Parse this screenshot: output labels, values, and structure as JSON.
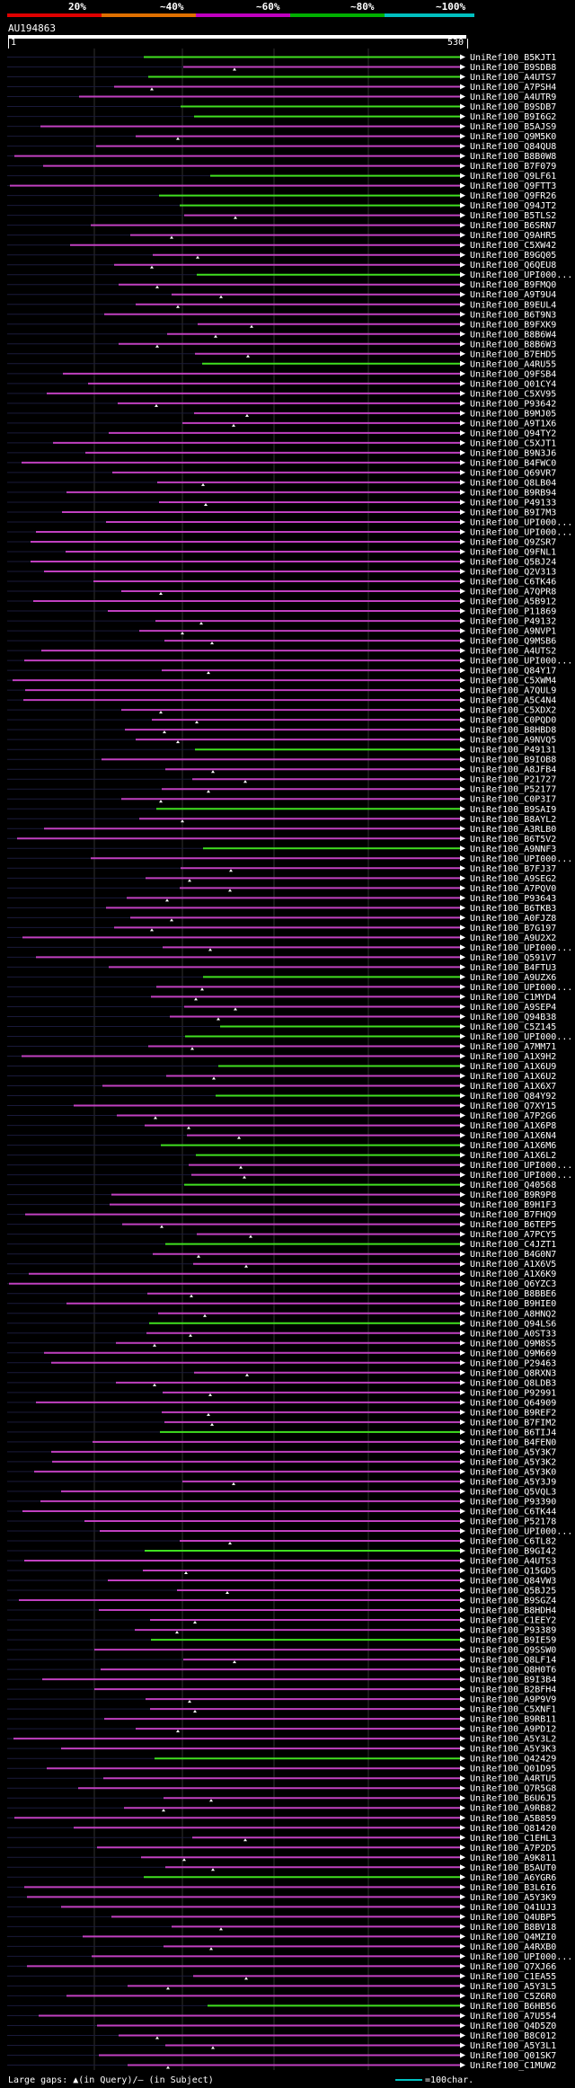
{
  "scale": {
    "labels": [
      "20%",
      "~40%",
      "~60%",
      "~80%",
      "~100%"
    ],
    "colors": [
      "#e00000",
      "#e07000",
      "#c000c0",
      "#00b000",
      "#00c0c0"
    ]
  },
  "query": {
    "id": "AU194863",
    "start": "1",
    "end": "530"
  },
  "hit_colors": {
    "high": "#40e020",
    "mid": "#c040c0"
  },
  "hits": [
    "UniRef100_B5KJT1",
    "UniRef100_B9SDB8",
    "UniRef100_A4UTS7",
    "UniRef100_A7PSH4",
    "UniRef100_A4UTR9",
    "UniRef100_B9SDB7",
    "UniRef100_B9I6G2",
    "UniRef100_B5AJS9",
    "UniRef100_Q9M5K0",
    "UniRef100_Q84QU8",
    "UniRef100_B8B0W8",
    "UniRef100_B7F079",
    "UniRef100_Q9LF61",
    "UniRef100_Q9FTT3",
    "UniRef100_Q9FR26",
    "UniRef100_Q94JT2",
    "UniRef100_B5TLS2",
    "UniRef100_B6SRN7",
    "UniRef100_Q9AHR5",
    "UniRef100_C5XW42",
    "UniRef100_B9GQ05",
    "UniRef100_Q6QEU8",
    "UniRef100_UPI000...",
    "UniRef100_B9FMQ0",
    "UniRef100_A9T9U4",
    "UniRef100_B9EUL4",
    "UniRef100_B6T9N3",
    "UniRef100_B9FXK9",
    "UniRef100_B8B6W4",
    "UniRef100_B8B6W3",
    "UniRef100_B7EHD5",
    "UniRef100_A4RU55",
    "UniRef100_Q9FSB4",
    "UniRef100_Q01CY4",
    "UniRef100_C5XV95",
    "UniRef100_P93642",
    "UniRef100_B9MJ05",
    "UniRef100_A9T1X6",
    "UniRef100_Q94TY2",
    "UniRef100_C5XJT1",
    "UniRef100_B9N3J6",
    "UniRef100_B4FWC0",
    "UniRef100_Q69VR7",
    "UniRef100_Q8LB04",
    "UniRef100_B9RB94",
    "UniRef100_P49133",
    "UniRef100_B9I7M3",
    "UniRef100_UPI000...",
    "UniRef100_UPI000...",
    "UniRef100_Q9ZSR7",
    "UniRef100_Q9FNL1",
    "UniRef100_Q5BJ24",
    "UniRef100_Q2V313",
    "UniRef100_C6TK46",
    "UniRef100_A7QPR8",
    "UniRef100_A5B912",
    "UniRef100_P11869",
    "UniRef100_P49132",
    "UniRef100_A9NVP1",
    "UniRef100_Q9MSB6",
    "UniRef100_A4UTS2",
    "UniRef100_UPI000...",
    "UniRef100_Q84Y17",
    "UniRef100_C5XWM4",
    "UniRef100_A7QUL9",
    "UniRef100_A5C4N4",
    "UniRef100_C5XDX2",
    "UniRef100_C0PQD0",
    "UniRef100_B8HBD8",
    "UniRef100_A9NVQ5",
    "UniRef100_P49131",
    "UniRef100_B9IOB8",
    "UniRef100_A8JFB4",
    "UniRef100_P21727",
    "UniRef100_P52177",
    "UniRef100_C0P3I7",
    "UniRef100_B9SAI9",
    "UniRef100_B8AYL2",
    "UniRef100_A3RLB0",
    "UniRef100_B6T5V2",
    "UniRef100_A9NNF3",
    "UniRef100_UPI000...",
    "UniRef100_B7FJ37",
    "UniRef100_A9SEG2",
    "UniRef100_A7PQV0",
    "UniRef100_P93643",
    "UniRef100_B6TKB3",
    "UniRef100_A0FJZ8",
    "UniRef100_B7G197",
    "UniRef100_A9U2X2",
    "UniRef100_UPI000...",
    "UniRef100_Q591V7",
    "UniRef100_B4FTU3",
    "UniRef100_A9UZX6",
    "UniRef100_UPI000...",
    "UniRef100_C1MYD4",
    "UniRef100_A9SEP4",
    "UniRef100_Q94B38",
    "UniRef100_C5Z145",
    "UniRef100_UPI000...",
    "UniRef100_A7MM71",
    "UniRef100_A1X9H2",
    "UniRef100_A1X6U9",
    "UniRef100_A1X6U2",
    "UniRef100_A1X6X7",
    "UniRef100_Q84Y92",
    "UniRef100_Q7XY15",
    "UniRef100_A7P2G6",
    "UniRef100_A1X6P8",
    "UniRef100_A1X6N4",
    "UniRef100_A1X6M6",
    "UniRef100_A1X6L2",
    "UniRef100_UPI000...",
    "UniRef100_UPI000...",
    "UniRef100_Q40568",
    "UniRef100_B9R9P8",
    "UniRef100_B9H1F3",
    "UniRef100_B7FHQ9",
    "UniRef100_B6TEP5",
    "UniRef100_A7PCY5",
    "UniRef100_C4JZT1",
    "UniRef100_B4G0N7",
    "UniRef100_A1X6V5",
    "UniRef100_A1X6K9",
    "UniRef100_Q6YZC3",
    "UniRef100_B8BBE6",
    "UniRef100_B9HIE0",
    "UniRef100_A8HNQ2",
    "UniRef100_Q94LS6",
    "UniRef100_A0ST33",
    "UniRef100_Q9M8S5",
    "UniRef100_Q9M669",
    "UniRef100_P29463",
    "UniRef100_Q8RXN3",
    "UniRef100_Q8LDB3",
    "UniRef100_P92991",
    "UniRef100_Q64909",
    "UniRef100_B9REF2",
    "UniRef100_B7FIM2",
    "UniRef100_B6TIJ4",
    "UniRef100_B4FEN0",
    "UniRef100_A5Y3K7",
    "UniRef100_A5Y3K2",
    "UniRef100_A5Y3K0",
    "UniRef100_A5Y3J9",
    "UniRef100_Q5VQL3",
    "UniRef100_P93390",
    "UniRef100_C6TK44",
    "UniRef100_P52178",
    "UniRef100_UPI000...",
    "UniRef100_C6TL82",
    "UniRef100_B9GI42",
    "UniRef100_A4UTS3",
    "UniRef100_Q15GD5",
    "UniRef100_Q84VW3",
    "UniRef100_Q5BJ25",
    "UniRef100_B9SGZ4",
    "UniRef100_B8HDH4",
    "UniRef100_C1EEY2",
    "UniRef100_P93389",
    "UniRef100_B9IE59",
    "UniRef100_Q9SSW0",
    "UniRef100_Q8LF14",
    "UniRef100_Q8H0T6",
    "UniRef100_B9I3B4",
    "UniRef100_B2BFH4",
    "UniRef100_A9P9V9",
    "UniRef100_C5XNF1",
    "UniRef100_B9RB11",
    "UniRef100_A9PD12",
    "UniRef100_A5Y3L2",
    "UniRef100_A5Y3K3",
    "UniRef100_Q42429",
    "UniRef100_Q01D95",
    "UniRef100_A4RTU5",
    "UniRef100_Q7R5G8",
    "UniRef100_B6U6J5",
    "UniRef100_A9RB82",
    "UniRef100_A5B859",
    "UniRef100_Q81420",
    "UniRef100_C1EHL3",
    "UniRef100_A7P2D5",
    "UniRef100_A9K811",
    "UniRef100_B5AUT0",
    "UniRef100_A6YGR6",
    "UniRef100_B3L6I6",
    "UniRef100_A5Y3K9",
    "UniRef100_Q41UJ3",
    "UniRef100_Q4UBP5",
    "UniRef100_B8BV18",
    "UniRef100_Q4MZI0",
    "UniRef100_A4RXB0",
    "UniRef100_UPI000...",
    "UniRef100_Q7XJ66",
    "UniRef100_C1EA55",
    "UniRef100_A5Y3L5",
    "UniRef100_C5Z6R0",
    "UniRef100_B6HB56",
    "UniRef100_A7U554",
    "UniRef100_Q4D5Z0",
    "UniRef100_B8C012",
    "UniRef100_A5Y3L1",
    "UniRef100_Q01SK7",
    "UniRef100_C1MUW2"
  ],
  "footer": {
    "left": "Large gaps: ▲(in Query)/— (in Subject)",
    "right": "=100char."
  }
}
